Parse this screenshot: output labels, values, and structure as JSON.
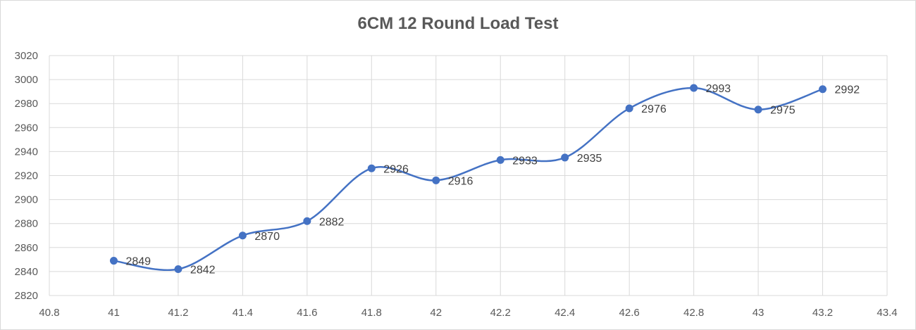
{
  "chart_data": {
    "type": "scatter",
    "title": "6CM 12 Round Load Test",
    "xlabel": "",
    "ylabel": "",
    "xlim": [
      40.8,
      43.4
    ],
    "ylim": [
      2820,
      3020
    ],
    "x_ticks": [
      "40.8",
      "41",
      "41.2",
      "41.4",
      "41.6",
      "41.8",
      "42",
      "42.2",
      "42.4",
      "42.6",
      "42.8",
      "43",
      "43.2",
      "43.4"
    ],
    "y_ticks": [
      "2820",
      "2840",
      "2860",
      "2880",
      "2900",
      "2920",
      "2940",
      "2960",
      "2980",
      "3000",
      "3020"
    ],
    "grid": true,
    "smoothed_line": true,
    "legend": "none",
    "series": [
      {
        "color": "#4472c4",
        "points": [
          {
            "x": 41.0,
            "y": 2849
          },
          {
            "x": 41.2,
            "y": 2842
          },
          {
            "x": 41.4,
            "y": 2870
          },
          {
            "x": 41.6,
            "y": 2882
          },
          {
            "x": 41.8,
            "y": 2926
          },
          {
            "x": 42.0,
            "y": 2916
          },
          {
            "x": 42.2,
            "y": 2933
          },
          {
            "x": 42.4,
            "y": 2935
          },
          {
            "x": 42.6,
            "y": 2976
          },
          {
            "x": 42.8,
            "y": 2993
          },
          {
            "x": 43.0,
            "y": 2975
          },
          {
            "x": 43.2,
            "y": 2992
          }
        ]
      }
    ]
  }
}
